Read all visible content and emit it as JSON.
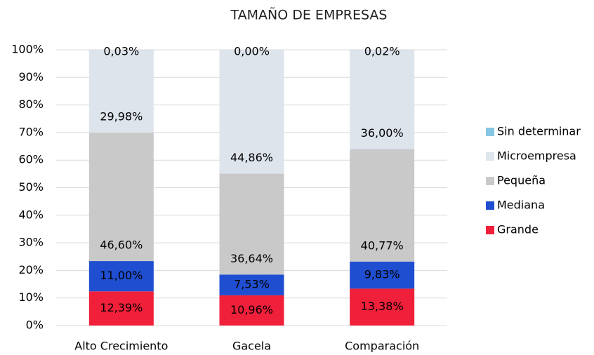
{
  "chart_data": {
    "type": "stacked_bar",
    "title": "TAMAÑO DE EMPRESAS",
    "categories": [
      "Alto Crecimiento",
      "Gacela",
      "Comparación"
    ],
    "series": [
      {
        "name": "Grande",
        "color": "#f0203a",
        "values": [
          12.39,
          10.96,
          13.38
        ],
        "value_labels": [
          "12,39%",
          "10,96%",
          "13,38%"
        ]
      },
      {
        "name": "Mediana",
        "color": "#1f4fd0",
        "values": [
          11.0,
          7.53,
          9.83
        ],
        "value_labels": [
          "11,00%",
          "7,53%",
          "9,83%"
        ]
      },
      {
        "name": "Pequeña",
        "color": "#c9c9c9",
        "values": [
          46.6,
          36.64,
          40.77
        ],
        "value_labels": [
          "46,60%",
          "36,64%",
          "40,77%"
        ]
      },
      {
        "name": "Microempresa",
        "color": "#dde4ec",
        "values": [
          29.98,
          44.86,
          36.0
        ],
        "value_labels": [
          "29,98%",
          "44,86%",
          "36,00%"
        ]
      },
      {
        "name": "Sin determinar",
        "color": "#87c6e5",
        "values": [
          0.03,
          0.0,
          0.02
        ],
        "value_labels": [
          "0,03%",
          "0,00%",
          "0,02%"
        ]
      }
    ],
    "ylim": [
      0,
      100
    ],
    "yticks": [
      {
        "value": 0,
        "label": "0%"
      },
      {
        "value": 10,
        "label": "10%"
      },
      {
        "value": 20,
        "label": "20%"
      },
      {
        "value": 30,
        "label": "30%"
      },
      {
        "value": 40,
        "label": "40%"
      },
      {
        "value": 50,
        "label": "50%"
      },
      {
        "value": 60,
        "label": "60%"
      },
      {
        "value": 70,
        "label": "70%"
      },
      {
        "value": 80,
        "label": "80%"
      },
      {
        "value": 90,
        "label": "90%"
      },
      {
        "value": 100,
        "label": "100%"
      }
    ],
    "grid": true,
    "legend": "right"
  }
}
